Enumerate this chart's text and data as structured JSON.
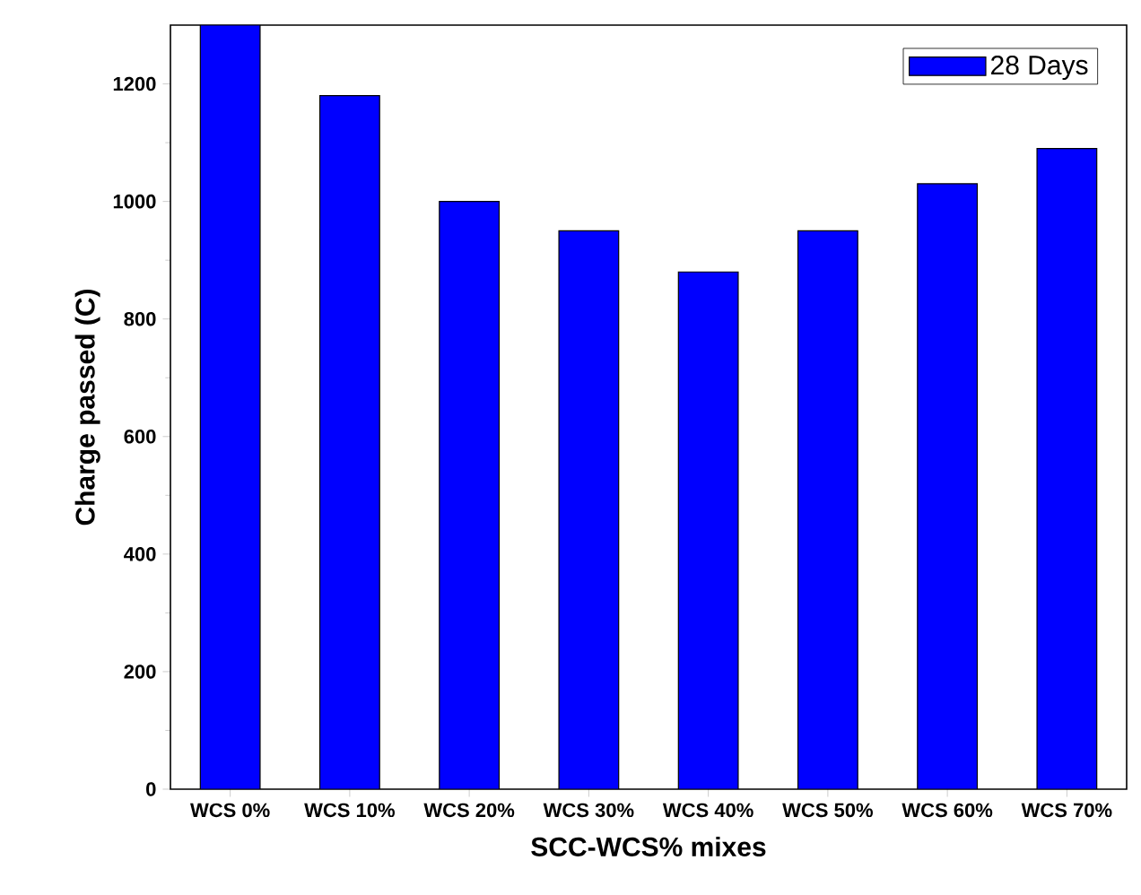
{
  "chart_data": {
    "type": "bar",
    "xlabel": "SCC-WCS% mixes",
    "ylabel": "Charge passed (C)",
    "categories": [
      "WCS 0%",
      "WCS 10%",
      "WCS 20%",
      "WCS 30%",
      "WCS 40%",
      "WCS 50%",
      "WCS 60%",
      "WCS 70%"
    ],
    "series": [
      {
        "name": "28 Days",
        "color": "#0000ff",
        "values": [
          1300,
          1180,
          1000,
          950,
          880,
          950,
          1030,
          1090
        ]
      }
    ],
    "ylim": [
      0,
      1300
    ],
    "yticks": [
      0,
      200,
      400,
      600,
      800,
      1000,
      1200
    ],
    "grid": false,
    "legend": "top right"
  }
}
